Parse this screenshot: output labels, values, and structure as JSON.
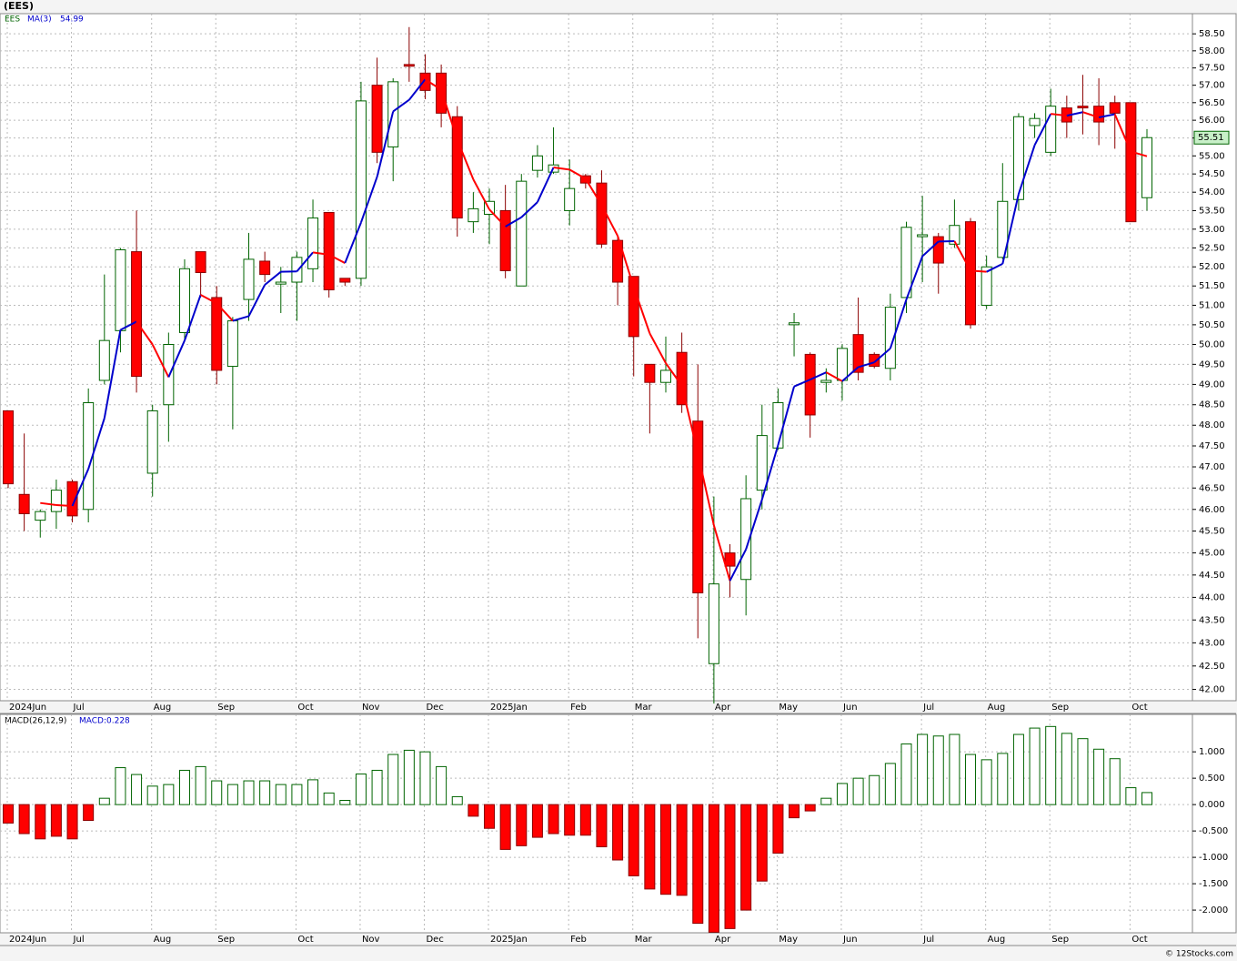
{
  "chart_data": [
    {
      "type": "candlestick",
      "title": "(EES)",
      "log_scale": true,
      "grid": true,
      "categories": [
        "2024Jun",
        null,
        null,
        null,
        "Jul",
        null,
        null,
        null,
        null,
        "Aug",
        null,
        null,
        null,
        "Sep",
        null,
        null,
        null,
        null,
        "Oct",
        null,
        null,
        null,
        "Nov",
        null,
        null,
        null,
        "Dec",
        null,
        null,
        null,
        "2025Jan",
        null,
        null,
        null,
        null,
        "Feb",
        null,
        null,
        null,
        "Mar",
        null,
        null,
        null,
        null,
        "Apr",
        null,
        null,
        null,
        "May",
        null,
        null,
        null,
        "Jun",
        null,
        null,
        null,
        null,
        "Jul",
        null,
        null,
        null,
        "Aug",
        null,
        null,
        null,
        "Sep",
        null,
        null,
        null,
        null,
        "Oct",
        null
      ],
      "series": [
        {
          "name": "EES",
          "up_color": "#006400",
          "down_color": "#ff0000",
          "open": [
            48.35,
            46.35,
            45.75,
            45.95,
            46.65,
            46.0,
            49.1,
            50.35,
            52.4,
            46.85,
            48.5,
            50.3,
            52.4,
            51.2,
            49.45,
            51.15,
            52.15,
            51.55,
            51.6,
            51.95,
            53.45,
            51.7,
            51.7,
            57.0,
            55.25,
            57.6,
            57.35,
            57.35,
            56.1,
            53.2,
            53.4,
            53.5,
            51.5,
            54.6,
            54.55,
            53.5,
            54.45,
            54.25,
            52.7,
            51.75,
            49.5,
            49.05,
            49.8,
            48.1,
            42.55,
            45.0,
            44.4,
            46.45,
            47.45,
            50.5,
            49.75,
            49.05,
            49.1,
            50.25,
            49.75,
            49.4,
            51.2,
            52.8,
            52.8,
            52.6,
            53.2,
            51.0,
            52.25,
            53.8,
            55.85,
            55.1,
            56.35,
            56.4,
            56.4,
            56.5,
            56.5,
            53.85
          ],
          "high": [
            48.35,
            47.8,
            46.0,
            46.7,
            46.7,
            48.9,
            51.8,
            52.5,
            53.5,
            48.5,
            50.3,
            52.2,
            52.4,
            51.5,
            50.7,
            52.9,
            52.4,
            52.0,
            52.4,
            53.8,
            53.45,
            51.7,
            57.1,
            57.8,
            57.2,
            58.7,
            57.9,
            57.6,
            56.4,
            54.0,
            54.1,
            54.2,
            54.5,
            55.3,
            55.8,
            54.9,
            54.5,
            54.6,
            52.8,
            51.75,
            49.5,
            50.2,
            50.3,
            49.5,
            46.3,
            45.2,
            46.8,
            48.5,
            48.9,
            50.8,
            49.8,
            49.4,
            50.0,
            51.2,
            49.8,
            51.3,
            53.2,
            53.9,
            52.9,
            53.8,
            53.3,
            52.3,
            54.8,
            56.2,
            56.2,
            56.9,
            56.7,
            57.3,
            57.2,
            56.7,
            56.5,
            55.75
          ],
          "low": [
            46.5,
            45.5,
            45.35,
            45.55,
            45.7,
            45.7,
            49.0,
            49.8,
            48.8,
            46.3,
            47.6,
            50.1,
            51.2,
            49.0,
            47.9,
            50.6,
            51.6,
            50.8,
            50.6,
            51.6,
            51.2,
            51.5,
            51.5,
            54.8,
            54.3,
            57.1,
            56.6,
            55.8,
            52.8,
            52.9,
            52.6,
            51.7,
            51.5,
            54.4,
            54.5,
            53.1,
            54.1,
            52.5,
            51.0,
            49.2,
            47.8,
            48.8,
            48.3,
            43.1,
            41.7,
            44.0,
            43.6,
            46.0,
            47.4,
            49.7,
            47.7,
            48.8,
            48.6,
            49.1,
            49.4,
            49.1,
            50.8,
            51.6,
            51.3,
            52.5,
            50.4,
            50.9,
            52.2,
            53.5,
            55.5,
            55.0,
            55.5,
            55.6,
            55.3,
            55.2,
            53.2,
            53.5
          ],
          "close": [
            46.6,
            45.9,
            45.95,
            46.45,
            45.85,
            48.55,
            50.1,
            52.45,
            49.2,
            48.35,
            50.0,
            51.95,
            51.85,
            49.35,
            50.6,
            52.2,
            51.8,
            51.6,
            52.25,
            53.3,
            51.4,
            51.6,
            56.55,
            55.1,
            57.1,
            57.55,
            56.85,
            56.2,
            53.3,
            53.55,
            53.75,
            51.9,
            54.3,
            55.0,
            54.75,
            54.1,
            54.25,
            52.6,
            51.6,
            50.2,
            49.05,
            49.35,
            48.5,
            44.1,
            44.3,
            44.7,
            46.25,
            47.75,
            48.55,
            50.55,
            48.25,
            49.1,
            49.9,
            49.3,
            49.45,
            50.95,
            53.05,
            52.85,
            52.1,
            53.1,
            50.5,
            52.0,
            53.75,
            56.1,
            56.05,
            56.4,
            55.95,
            56.35,
            55.95,
            56.2,
            53.2,
            55.51
          ]
        },
        {
          "name": "MA(3)",
          "up_color": "#0000cc",
          "down_color": "#ff0000",
          "values": [
            null,
            null,
            46.15,
            46.1,
            46.08,
            46.95,
            48.17,
            50.37,
            50.58,
            50.0,
            49.18,
            50.1,
            51.27,
            51.05,
            50.6,
            50.72,
            51.53,
            51.87,
            51.88,
            52.38,
            52.32,
            52.1,
            53.18,
            54.42,
            56.25,
            56.58,
            57.17,
            56.87,
            55.45,
            54.35,
            53.53,
            53.07,
            53.32,
            53.73,
            54.68,
            54.62,
            54.37,
            53.65,
            52.82,
            51.47,
            50.28,
            49.53,
            48.97,
            47.32,
            45.63,
            44.37,
            45.08,
            46.23,
            47.52,
            48.95,
            49.12,
            49.3,
            49.08,
            49.43,
            49.55,
            49.9,
            51.15,
            52.28,
            52.67,
            52.68,
            51.9,
            51.87,
            52.08,
            53.95,
            55.3,
            56.18,
            56.13,
            56.23,
            56.08,
            56.17,
            55.12,
            54.99
          ]
        }
      ],
      "ylim": [
        41.76,
        59.1
      ],
      "yticks": [
        {
          "value": 58.5,
          "label": "58.50"
        },
        {
          "value": 58,
          "label": "58.00"
        },
        {
          "value": 57.5,
          "label": "57.50"
        },
        {
          "value": 57,
          "label": "57.00"
        },
        {
          "value": 56.5,
          "label": "56.50"
        },
        {
          "value": 56,
          "label": "56.00"
        },
        {
          "value": 55.5,
          "label": "55.50"
        },
        {
          "value": 55,
          "label": "55.00"
        },
        {
          "value": 54.5,
          "label": "54.50"
        },
        {
          "value": 54,
          "label": "54.00"
        },
        {
          "value": 53.5,
          "label": "53.50"
        },
        {
          "value": 53,
          "label": "53.00"
        },
        {
          "value": 52.5,
          "label": "52.50"
        },
        {
          "value": 52,
          "label": "52.00"
        },
        {
          "value": 51.5,
          "label": "51.50"
        },
        {
          "value": 51,
          "label": "51.00"
        },
        {
          "value": 50.5,
          "label": "50.50"
        },
        {
          "value": 50,
          "label": "50.00"
        },
        {
          "value": 49.5,
          "label": "49.50"
        },
        {
          "value": 49,
          "label": "49.00"
        },
        {
          "value": 48.5,
          "label": "48.50"
        },
        {
          "value": 48,
          "label": "48.00"
        },
        {
          "value": 47.5,
          "label": "47.50"
        },
        {
          "value": 47,
          "label": "47.00"
        },
        {
          "value": 46.5,
          "label": "46.50"
        },
        {
          "value": 46,
          "label": "46.00"
        },
        {
          "value": 45.5,
          "label": "45.50"
        },
        {
          "value": 45,
          "label": "45.00"
        },
        {
          "value": 44.5,
          "label": "44.50"
        },
        {
          "value": 44,
          "label": "44.00"
        },
        {
          "value": 43.5,
          "label": "43.50"
        },
        {
          "value": 43,
          "label": "43.00"
        },
        {
          "value": 42.5,
          "label": "42.50"
        },
        {
          "value": 42,
          "label": "42.00"
        }
      ],
      "credit": "© 12Stocks.com"
    },
    {
      "type": "bar",
      "title": "MACD(26,12,9)",
      "grid": true,
      "up_color": "#006400",
      "down_color": "#ff0000",
      "series": [
        {
          "name": "MACD:",
          "values": [
            -0.35,
            -0.55,
            -0.65,
            -0.6,
            -0.65,
            -0.3,
            0.12,
            0.7,
            0.57,
            0.35,
            0.38,
            0.65,
            0.72,
            0.45,
            0.38,
            0.45,
            0.45,
            0.38,
            0.38,
            0.47,
            0.22,
            0.08,
            0.58,
            0.65,
            0.95,
            1.03,
            1.0,
            0.72,
            0.15,
            -0.22,
            -0.45,
            -0.85,
            -0.78,
            -0.62,
            -0.55,
            -0.58,
            -0.58,
            -0.8,
            -1.05,
            -1.35,
            -1.6,
            -1.7,
            -1.72,
            -2.25,
            -2.42,
            -2.35,
            -2.0,
            -1.45,
            -0.92,
            -0.25,
            -0.12,
            0.12,
            0.4,
            0.5,
            0.55,
            0.78,
            1.15,
            1.33,
            1.3,
            1.33,
            0.95,
            0.85,
            0.97,
            1.33,
            1.45,
            1.48,
            1.35,
            1.25,
            1.05,
            0.87,
            0.32,
            0.228
          ]
        }
      ],
      "ylim": [
        -2.43,
        1.71
      ],
      "yticks": [
        {
          "value": 1,
          "label": "1.000"
        },
        {
          "value": 0.5,
          "label": "0.500"
        },
        {
          "value": 0,
          "label": "0.000"
        },
        {
          "value": -0.5,
          "label": "-0.500"
        },
        {
          "value": -1,
          "label": "-1.000"
        },
        {
          "value": -1.5,
          "label": "-1.500"
        },
        {
          "value": -2,
          "label": "-2.000"
        }
      ]
    }
  ]
}
